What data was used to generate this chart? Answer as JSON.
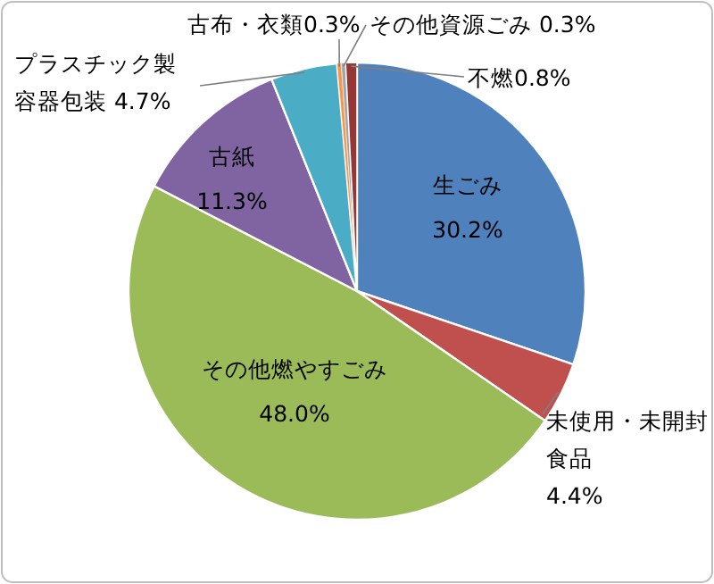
{
  "chart_data": {
    "type": "pie",
    "categories": [
      "生ごみ",
      "未使用・未開封食品",
      "その他燃やすごみ",
      "古紙",
      "プラスチック製容器包装",
      "古布・衣類",
      "その他資源ごみ",
      "不燃"
    ],
    "values": [
      30.2,
      4.4,
      48.0,
      11.3,
      4.7,
      0.3,
      0.3,
      0.8
    ],
    "colors": [
      "#4f81bd",
      "#c0504d",
      "#9bbb59",
      "#8064a2",
      "#4bacc6",
      "#f79646",
      "#a5a5a5",
      "#953735"
    ],
    "value_labels": [
      "30.2%",
      "4.4%",
      "48.0%",
      "11.3%",
      "4.7%",
      "0.3%",
      "0.3%",
      "0.8%"
    ]
  }
}
